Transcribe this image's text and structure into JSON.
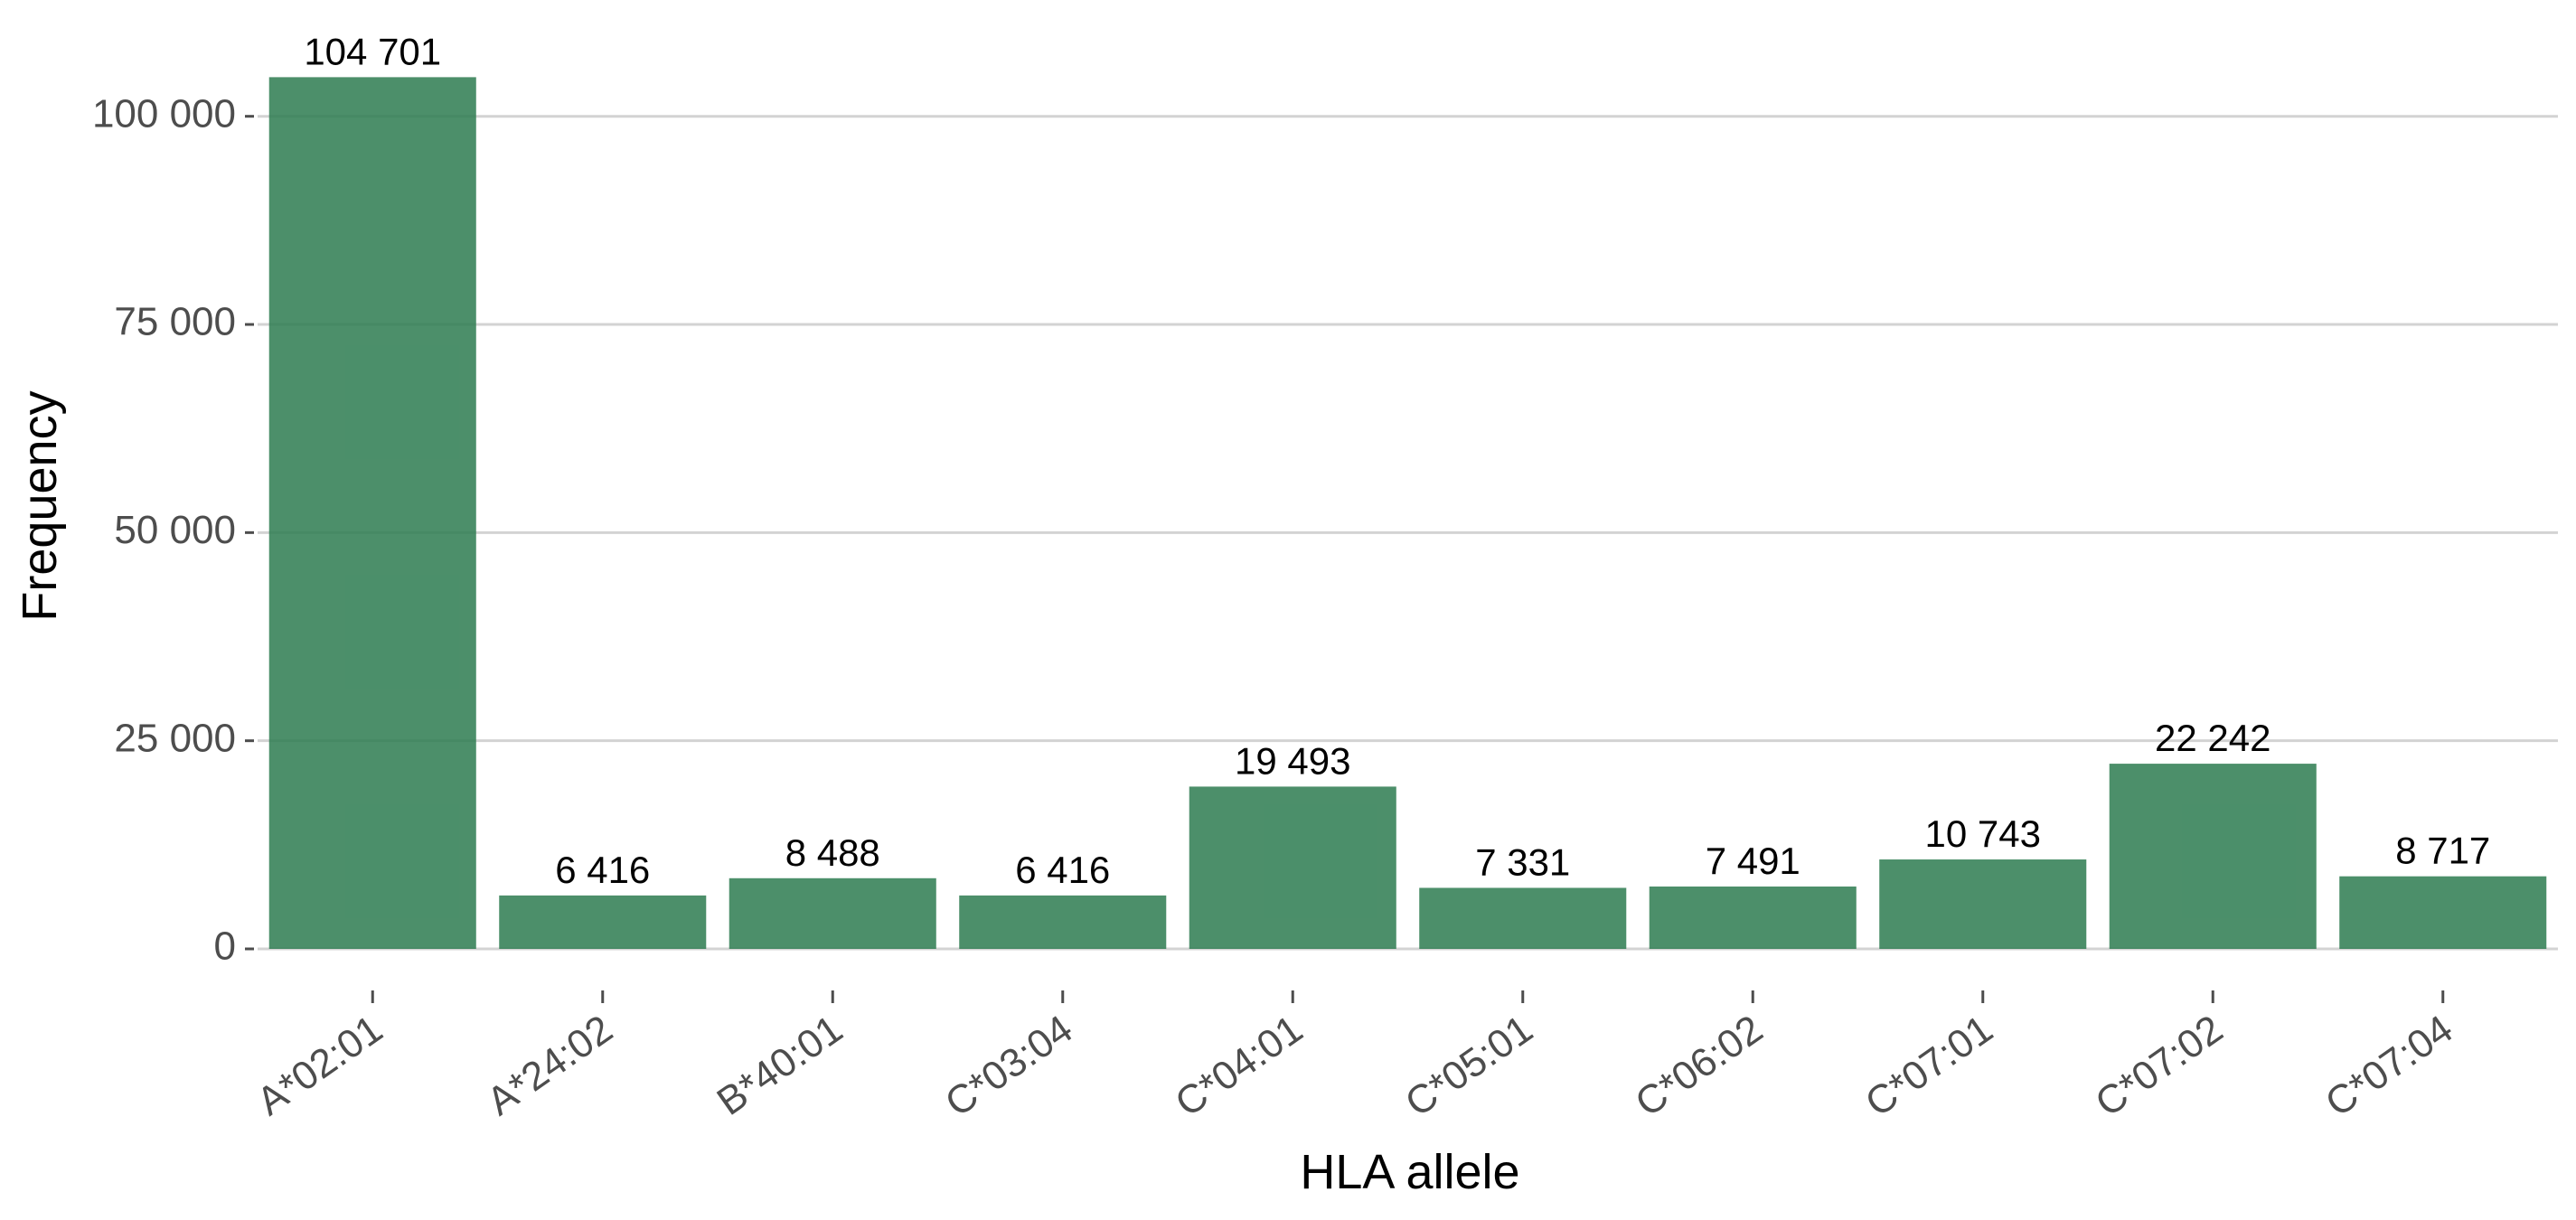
{
  "chart_data": {
    "type": "bar",
    "title": "",
    "xlabel": "HLA allele",
    "ylabel": "Frequency",
    "categories": [
      "A*02:01",
      "A*24:02",
      "B*40:01",
      "C*03:04",
      "C*04:01",
      "C*05:01",
      "C*06:02",
      "C*07:01",
      "C*07:02",
      "C*07:04"
    ],
    "values": [
      104701,
      6416,
      8488,
      6416,
      19493,
      7331,
      7491,
      10743,
      22242,
      8717
    ],
    "data_labels": [
      "104 701",
      "6 416",
      "8 488",
      "6 416",
      "19 493",
      "7 331",
      "7 491",
      "10 743",
      "22 242",
      "8 717"
    ],
    "ylim": [
      0,
      108000
    ],
    "yticks": [
      0,
      25000,
      50000,
      75000,
      100000
    ],
    "ytick_labels": [
      "0",
      "25 000",
      "50 000",
      "75 000",
      "100 000"
    ],
    "grid": "horizontal major",
    "legend": "none",
    "colors": {
      "bar": "#2e7d52",
      "grid": "#d3d3d3",
      "axis_text": "#4d4d4d"
    }
  }
}
